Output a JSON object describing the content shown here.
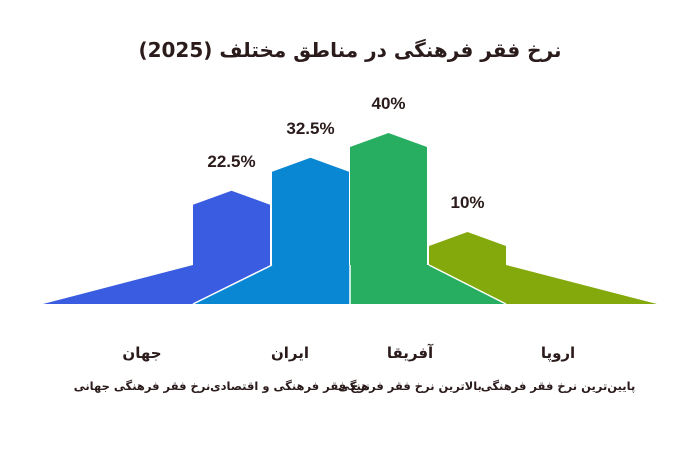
{
  "title": "نرخ فقر فرهنگی در مناطق مختلف (2025)",
  "colors": {
    "text": "#2b1b1b"
  },
  "chart_data": {
    "type": "bar",
    "title": "نرخ فقر فرهنگی در مناطق مختلف (2025)",
    "unit": "%",
    "ylim": [
      0,
      45
    ],
    "grid": false,
    "legend": "none",
    "categories": [
      "جهان",
      "ایران",
      "آفریقا",
      "اروپا"
    ],
    "values": [
      22.5,
      32.5,
      40,
      10
    ],
    "value_labels": [
      "22.5%",
      "32.5%",
      "40%",
      "10%"
    ],
    "colors": [
      "#3a5ce0",
      "#0a87d3",
      "#27ae60",
      "#84a90c"
    ]
  },
  "categories_info": [
    {
      "name": "جهان",
      "desc": "نرخ فقر فرهنگی جهانی"
    },
    {
      "name": "ایران",
      "desc": "نرخ فقر فرهنگی و اقتصادی"
    },
    {
      "name": "آفریقا",
      "desc": "بالاترین نرخ فقر فرهنگی"
    },
    {
      "name": "اروپا",
      "desc": "پایین‌ترین نرخ فقر فرهنگی"
    }
  ]
}
